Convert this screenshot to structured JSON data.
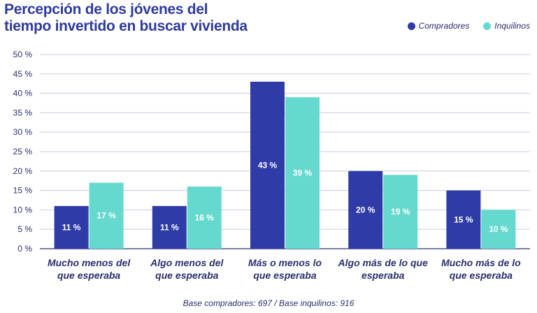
{
  "chart_data": {
    "type": "bar",
    "title": "Percepción de los jóvenes del tiempo invertido en buscar vivienda",
    "categories": [
      [
        "Mucho menos del",
        "que esperaba"
      ],
      [
        "Algo menos del",
        "que esperaba"
      ],
      [
        "Más o menos lo",
        "que esperaba"
      ],
      [
        "Algo más de lo que",
        "esperaba"
      ],
      [
        "Mucho más de lo",
        "que esperaba"
      ]
    ],
    "series": [
      {
        "name": "Compradores",
        "color": "#2f3ca8",
        "values": [
          11,
          11,
          43,
          20,
          15
        ],
        "labels": [
          "11 %",
          "11 %",
          "43 %",
          "20 %",
          "15 %"
        ]
      },
      {
        "name": "Inquilinos",
        "color": "#66d9cf",
        "values": [
          17,
          16,
          39,
          19,
          10
        ],
        "labels": [
          "17 %",
          "16 %",
          "39 %",
          "19 %",
          "10 %"
        ]
      }
    ],
    "ylim": [
      0,
      50
    ],
    "yticks": [
      0,
      5,
      10,
      15,
      20,
      25,
      30,
      35,
      40,
      45,
      50
    ],
    "ytick_labels": [
      "0 %",
      "5 %",
      "10 %",
      "15 %",
      "20 %",
      "25 %",
      "30 %",
      "35 %",
      "40 %",
      "45 %",
      "50 %"
    ],
    "xlabel": "",
    "ylabel": "",
    "legend": "top-right",
    "footnote": "Base compradores: 697 / Base inquilinos: 916"
  }
}
